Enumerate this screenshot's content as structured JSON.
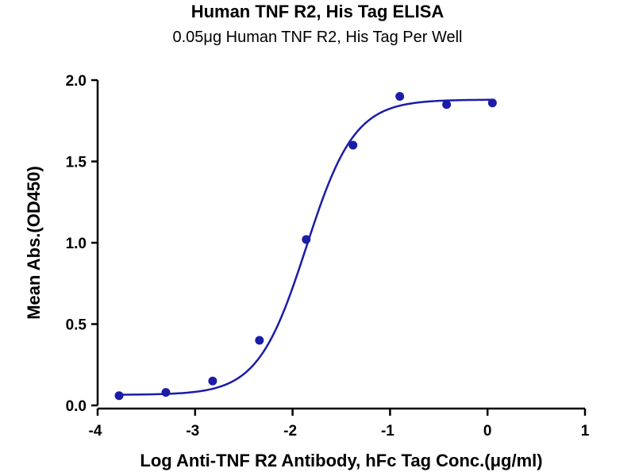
{
  "chart_data": {
    "type": "scatter",
    "title": "Human TNF R2, His Tag ELISA",
    "subtitle": "0.05μg Human TNF R2, His Tag Per Well",
    "xlabel": "Log Anti-TNF R2 Antibody, hFc Tag Conc.(μg/ml)",
    "ylabel": "Mean Abs.(OD450)",
    "xlim": [
      -4,
      1
    ],
    "ylim": [
      0,
      2.0
    ],
    "x_ticks": [
      "-4",
      "-3",
      "-2",
      "-1",
      "0",
      "1"
    ],
    "y_ticks": [
      "0.0",
      "0.5",
      "1.0",
      "1.5",
      "2.0"
    ],
    "grid": false,
    "legend": "none",
    "series": [
      {
        "color": "#1c1ca8",
        "points": [
          {
            "x": -3.78,
            "y": 0.06
          },
          {
            "x": -3.3,
            "y": 0.08
          },
          {
            "x": -2.82,
            "y": 0.15
          },
          {
            "x": -2.34,
            "y": 0.4
          },
          {
            "x": -1.86,
            "y": 1.02
          },
          {
            "x": -1.38,
            "y": 1.6
          },
          {
            "x": -0.9,
            "y": 1.9
          },
          {
            "x": -0.42,
            "y": 1.85
          },
          {
            "x": 0.05,
            "y": 1.86
          }
        ],
        "fit": {
          "model": "4PL",
          "bottom": 0.065,
          "top": 1.88,
          "log_ec50": -1.86,
          "hill": 1.75,
          "x_range": [
            -3.78,
            0.05
          ]
        }
      }
    ]
  }
}
